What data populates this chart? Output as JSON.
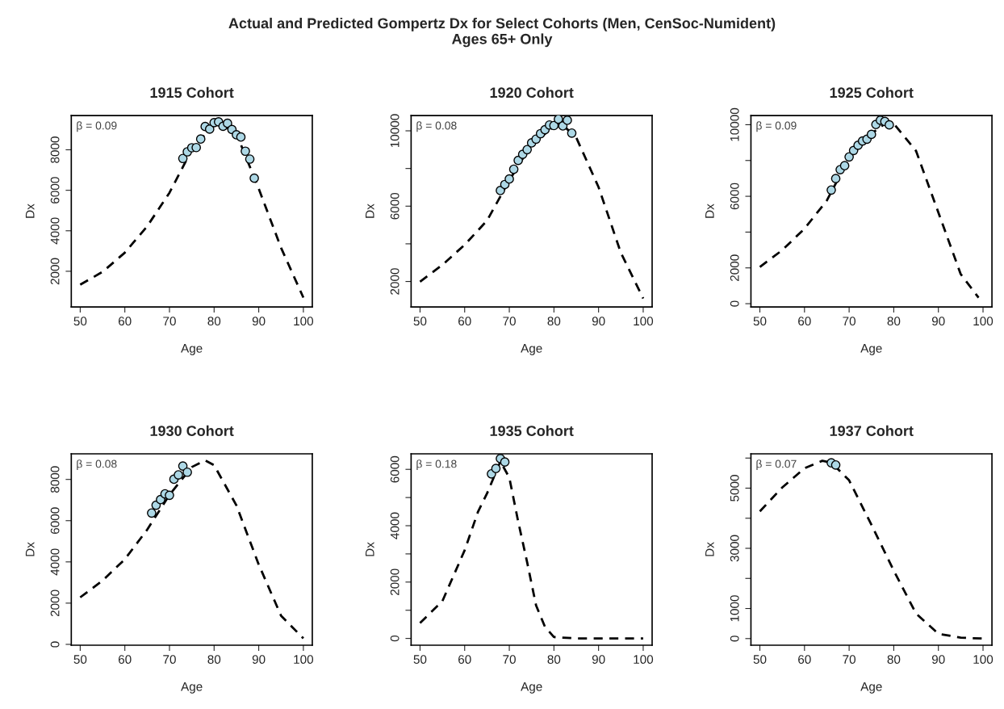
{
  "chart_data": [
    {
      "type": "other",
      "title": "Actual and Predicted Gompertz Dx for Select Cohorts (Men, CenSoc-Numident)",
      "subtitle": "Ages 65+ Only"
    },
    {
      "type": "line",
      "title": "1915 Cohort",
      "xlabel": "Age",
      "ylabel": "Dx",
      "annotations": [
        "β = 0.09"
      ],
      "xlim": [
        48,
        102
      ],
      "ylim": [
        240,
        9690
      ],
      "xticks": [
        50,
        60,
        70,
        80,
        90,
        100
      ],
      "yticks": [
        2000,
        4000,
        6000,
        8000
      ],
      "grid": false,
      "legend": false,
      "series": [
        {
          "type": "line",
          "color": "#000000",
          "line_style": "dashed",
          "marker": "none",
          "x": [
            50,
            55,
            60,
            65,
            70,
            75,
            80,
            81,
            85,
            90,
            95,
            100
          ],
          "values": [
            1340,
            1970,
            2920,
            4220,
            5880,
            8000,
            9300,
            9350,
            8800,
            6080,
            3160,
            700
          ]
        },
        {
          "type": "scatter",
          "color": "#add8e6",
          "marker": "circle",
          "x": [
            73,
            74,
            75,
            76,
            77,
            78,
            79,
            80,
            81,
            82,
            83,
            84,
            85,
            86,
            87,
            88,
            89
          ],
          "values": [
            7570,
            7900,
            8100,
            8110,
            8530,
            9150,
            9020,
            9340,
            9380,
            9160,
            9310,
            9000,
            8740,
            8630,
            7930,
            7540,
            6600
          ]
        }
      ]
    },
    {
      "type": "line",
      "title": "1920 Cohort",
      "xlabel": "Age",
      "ylabel": "Dx",
      "annotations": [
        "β = 0.08"
      ],
      "xlim": [
        48,
        102
      ],
      "ylim": [
        650,
        10810
      ],
      "xticks": [
        50,
        60,
        70,
        80,
        90,
        100
      ],
      "yticks": [
        2000,
        {
          "value": 4000,
          "label": null
        },
        6000,
        {
          "value": 8000,
          "label": null
        },
        10000
      ],
      "grid": false,
      "legend": false,
      "series": [
        {
          "type": "line",
          "color": "#000000",
          "line_style": "dashed",
          "marker": "none",
          "x": [
            50,
            55,
            60,
            65,
            70,
            75,
            80,
            82,
            85,
            90,
            95,
            100
          ],
          "values": [
            1990,
            2880,
            3950,
            5230,
            7370,
            9290,
            10210,
            10300,
            9640,
            7010,
            3520,
            1100
          ]
        },
        {
          "type": "scatter",
          "color": "#add8e6",
          "marker": "circle",
          "x": [
            68,
            69,
            70,
            71,
            72,
            73,
            74,
            75,
            76,
            77,
            78,
            79,
            80,
            81,
            82,
            83,
            84
          ],
          "values": [
            6830,
            7150,
            7440,
            7960,
            8430,
            8750,
            9000,
            9360,
            9560,
            9850,
            10060,
            10310,
            10280,
            10620,
            10260,
            10560,
            9880
          ]
        }
      ]
    },
    {
      "type": "line",
      "title": "1925 Cohort",
      "xlabel": "Age",
      "ylabel": "Dx",
      "annotations": [
        "β = 0.09"
      ],
      "xlim": [
        48,
        102
      ],
      "ylim": [
        -180,
        10510
      ],
      "xticks": [
        50,
        60,
        70,
        80,
        90,
        100
      ],
      "yticks": [
        0,
        2000,
        {
          "value": 4000,
          "label": null
        },
        6000,
        {
          "value": 8000,
          "label": null
        },
        10000
      ],
      "grid": false,
      "legend": false,
      "series": [
        {
          "type": "line",
          "color": "#000000",
          "line_style": "dashed",
          "marker": "none",
          "x": [
            50,
            55,
            60,
            65,
            70,
            75,
            78,
            80,
            85,
            90,
            95,
            99
          ],
          "values": [
            2050,
            2990,
            4190,
            5760,
            8150,
            9500,
            10050,
            10060,
            8530,
            5090,
            1650,
            340
          ]
        },
        {
          "type": "scatter",
          "color": "#add8e6",
          "marker": "circle",
          "x": [
            66,
            67,
            68,
            69,
            70,
            71,
            72,
            73,
            74,
            75,
            76,
            77,
            78,
            79
          ],
          "values": [
            6350,
            6990,
            7490,
            7710,
            8200,
            8560,
            8850,
            9090,
            9190,
            9460,
            10010,
            10250,
            10180,
            9990
          ]
        }
      ]
    },
    {
      "type": "line",
      "title": "1930 Cohort",
      "xlabel": "Age",
      "ylabel": "Dx",
      "annotations": [
        "β = 0.08"
      ],
      "xlim": [
        48,
        102
      ],
      "ylim": [
        -40,
        9240
      ],
      "xticks": [
        50,
        60,
        70,
        80,
        90,
        100
      ],
      "yticks": [
        0,
        2000,
        4000,
        6000,
        8000
      ],
      "grid": false,
      "legend": false,
      "series": [
        {
          "type": "line",
          "color": "#000000",
          "line_style": "dashed",
          "marker": "none",
          "x": [
            50,
            55,
            60,
            65,
            70,
            75,
            78,
            80,
            85,
            90,
            95,
            100
          ],
          "values": [
            2280,
            3090,
            4130,
            5560,
            7250,
            8600,
            8920,
            8690,
            6740,
            3870,
            1390,
            290
          ]
        },
        {
          "type": "scatter",
          "color": "#add8e6",
          "marker": "circle",
          "x": [
            66,
            67,
            68,
            69,
            70,
            71,
            72,
            73,
            74
          ],
          "values": [
            6370,
            6750,
            7020,
            7300,
            7230,
            8010,
            8220,
            8650,
            8350
          ]
        }
      ]
    },
    {
      "type": "line",
      "title": "1935 Cohort",
      "xlabel": "Age",
      "ylabel": "Dx",
      "annotations": [
        "β = 0.18"
      ],
      "xlim": [
        48,
        102
      ],
      "ylim": [
        -240,
        6550
      ],
      "xticks": [
        50,
        60,
        70,
        80,
        90,
        100
      ],
      "yticks": [
        0,
        {
          "value": 1000,
          "label": null
        },
        2000,
        {
          "value": 3000,
          "label": null
        },
        4000,
        {
          "value": 5000,
          "label": null
        },
        6000
      ],
      "grid": false,
      "legend": false,
      "series": [
        {
          "type": "line",
          "color": "#000000",
          "line_style": "dashed",
          "marker": "none",
          "x": [
            50,
            55,
            60,
            63,
            65,
            68,
            70,
            72,
            74,
            76,
            78,
            80,
            85,
            90,
            100
          ],
          "values": [
            550,
            1320,
            3130,
            4500,
            5140,
            6280,
            5710,
            4140,
            2700,
            1170,
            410,
            50,
            0,
            0,
            0
          ]
        },
        {
          "type": "scatter",
          "color": "#add8e6",
          "marker": "circle",
          "x": [
            66,
            67,
            68,
            69
          ],
          "values": [
            5840,
            6030,
            6380,
            6260
          ]
        }
      ]
    },
    {
      "type": "line",
      "title": "1937 Cohort",
      "xlabel": "Age",
      "ylabel": "Dx",
      "annotations": [
        "β = 0.07"
      ],
      "xlim": [
        48,
        102
      ],
      "ylim": [
        -220,
        6140
      ],
      "xticks": [
        50,
        60,
        70,
        80,
        90,
        100
      ],
      "yticks": [
        0,
        1000,
        {
          "value": 2000,
          "label": null
        },
        3000,
        {
          "value": 4000,
          "label": null
        },
        5000,
        {
          "value": 6000,
          "label": null
        }
      ],
      "grid": false,
      "legend": false,
      "series": [
        {
          "type": "line",
          "color": "#000000",
          "line_style": "dashed",
          "marker": "none",
          "x": [
            50,
            55,
            60,
            64,
            66,
            70,
            75,
            80,
            85,
            90,
            95,
            100
          ],
          "values": [
            4230,
            5020,
            5660,
            5910,
            5850,
            5260,
            3780,
            2260,
            830,
            160,
            30,
            0
          ]
        },
        {
          "type": "scatter",
          "color": "#add8e6",
          "marker": "circle",
          "x": [
            66,
            67
          ],
          "values": [
            5840,
            5770
          ]
        }
      ]
    }
  ]
}
